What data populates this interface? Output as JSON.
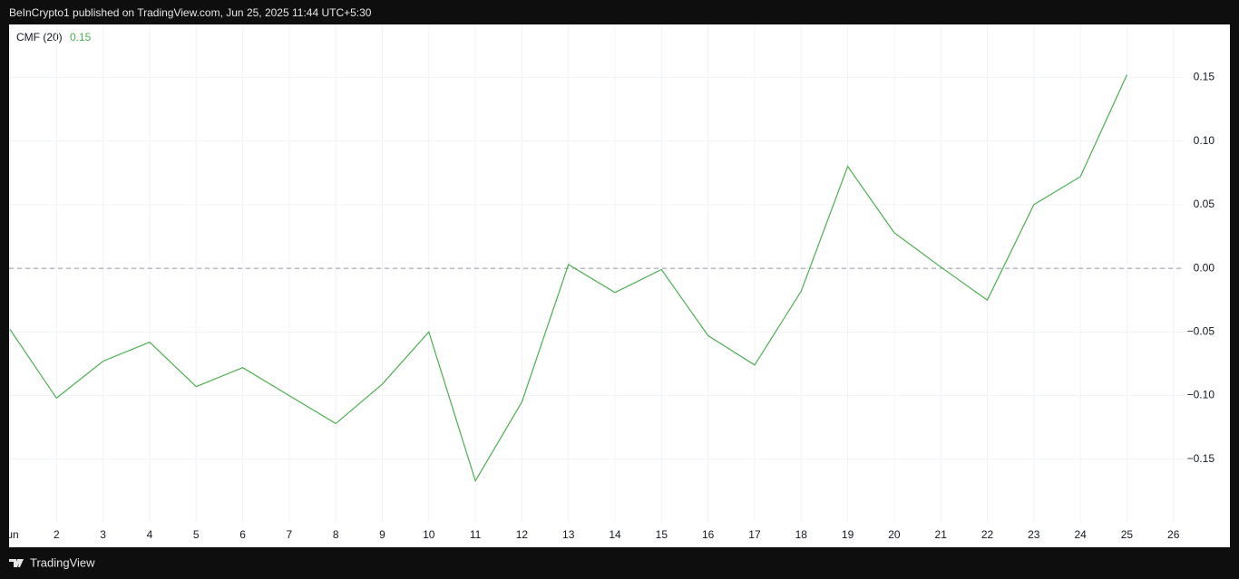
{
  "header": {
    "text": "BeInCrypto1 published on TradingView.com, Jun 25, 2025 11:44 UTC+5:30"
  },
  "footer": {
    "brand": "TradingView"
  },
  "chart_data": {
    "type": "line",
    "indicator": "CMF (20)",
    "last_value_label": "0.15",
    "x": [
      1,
      2,
      3,
      4,
      5,
      6,
      7,
      8,
      9,
      10,
      11,
      12,
      13,
      14,
      15,
      16,
      17,
      18,
      19,
      20,
      21,
      22,
      23,
      24,
      25
    ],
    "series": [
      {
        "name": "CMF (20)",
        "color": "#4caf50",
        "values": [
          -0.048,
          -0.102,
          -0.073,
          -0.058,
          -0.093,
          -0.078,
          -0.1,
          -0.122,
          -0.091,
          -0.05,
          -0.167,
          -0.105,
          0.003,
          -0.019,
          -0.001,
          -0.053,
          -0.076,
          -0.018,
          0.08,
          0.028,
          0.001,
          -0.025,
          0.05,
          0.072,
          0.152
        ]
      }
    ],
    "xlim": [
      0.98,
      26.2
    ],
    "xticks": [
      {
        "value": 1,
        "label": "Jun"
      },
      2,
      3,
      4,
      5,
      6,
      7,
      8,
      9,
      10,
      11,
      12,
      13,
      14,
      15,
      16,
      17,
      18,
      19,
      20,
      21,
      22,
      23,
      24,
      25,
      26
    ],
    "ylim": [
      -0.2,
      0.1916
    ],
    "yticks": [
      {
        "value": 0.15,
        "label": "0.15"
      },
      {
        "value": 0.1,
        "label": "0.10"
      },
      {
        "value": 0.05,
        "label": "0.05"
      },
      {
        "value": 0,
        "label": "0.00"
      },
      {
        "value": -0.05,
        "label": "−0.05"
      },
      {
        "value": -0.1,
        "label": "−0.10"
      },
      {
        "value": -0.15,
        "label": "−0.15"
      }
    ],
    "reference_line": 0,
    "grid": true
  }
}
